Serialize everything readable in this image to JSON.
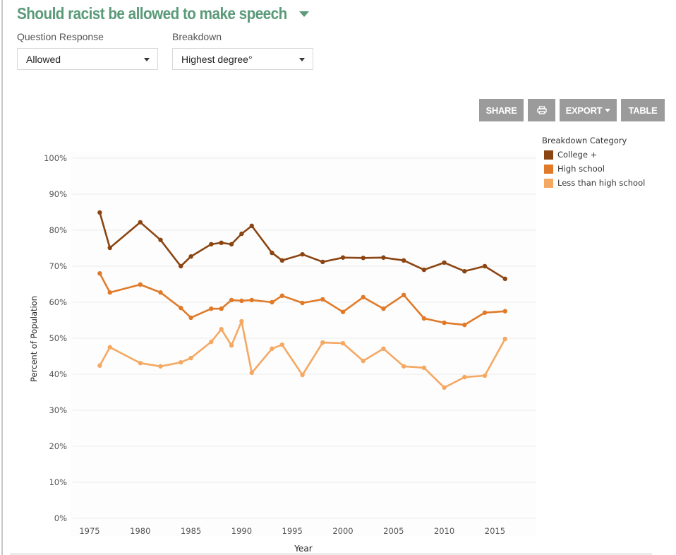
{
  "header": {
    "title": "Should racist be allowed to make speech"
  },
  "filters": {
    "question_response": {
      "label": "Question Response",
      "value": "Allowed"
    },
    "breakdown": {
      "label": "Breakdown",
      "value": "Highest degree°"
    }
  },
  "toolbar": {
    "share_label": "SHARE",
    "print_icon": "printer-icon",
    "export_label": "EXPORT",
    "table_label": "TABLE"
  },
  "legend": {
    "title": "Breakdown Category",
    "items": [
      {
        "label": "College +",
        "color": "#8b4513"
      },
      {
        "label": "High school",
        "color": "#e07a28"
      },
      {
        "label": "Less than high school",
        "color": "#f5a862"
      }
    ]
  },
  "chart_data": {
    "type": "line",
    "title": "Should racist be allowed to make speech",
    "xlabel": "Year",
    "ylabel": "Percent of Population",
    "xlim": [
      1972,
      2018
    ],
    "ylim": [
      0,
      100
    ],
    "x_ticks": [
      1975,
      1980,
      1985,
      1990,
      1995,
      2000,
      2005,
      2010,
      2015
    ],
    "y_ticks": [
      "0%",
      "10%",
      "20%",
      "30%",
      "40%",
      "50%",
      "60%",
      "70%",
      "80%",
      "90%",
      "100%"
    ],
    "grid": true,
    "legend_position": "right",
    "x": [
      1976,
      1977,
      1980,
      1982,
      1984,
      1985,
      1987,
      1988,
      1989,
      1990,
      1991,
      1993,
      1994,
      1996,
      1998,
      2000,
      2002,
      2004,
      2006,
      2008,
      2010,
      2012,
      2014,
      2016
    ],
    "series": [
      {
        "name": "College +",
        "color": "#8b4513",
        "values": [
          84.9,
          75.1,
          82.2,
          77.3,
          70.0,
          72.7,
          76.1,
          76.5,
          76.1,
          79.0,
          81.2,
          73.7,
          71.6,
          73.3,
          71.2,
          72.4,
          72.3,
          72.4,
          71.6,
          69.0,
          71.0,
          68.6,
          70.0,
          66.5
        ]
      },
      {
        "name": "High school",
        "color": "#e07a28",
        "values": [
          68.0,
          62.7,
          64.9,
          62.7,
          58.4,
          55.7,
          58.2,
          58.2,
          60.6,
          60.4,
          60.6,
          60.0,
          61.8,
          59.8,
          60.8,
          57.3,
          61.4,
          58.2,
          62.0,
          55.5,
          54.3,
          53.7,
          57.1,
          57.5
        ]
      },
      {
        "name": "Less than high school",
        "color": "#f5a862",
        "values": [
          42.4,
          47.5,
          43.1,
          42.2,
          43.3,
          44.5,
          49.0,
          52.5,
          48.0,
          54.7,
          40.4,
          47.1,
          48.2,
          39.8,
          48.8,
          48.6,
          43.7,
          47.1,
          42.2,
          41.8,
          36.3,
          39.2,
          39.6,
          49.8
        ]
      }
    ]
  }
}
